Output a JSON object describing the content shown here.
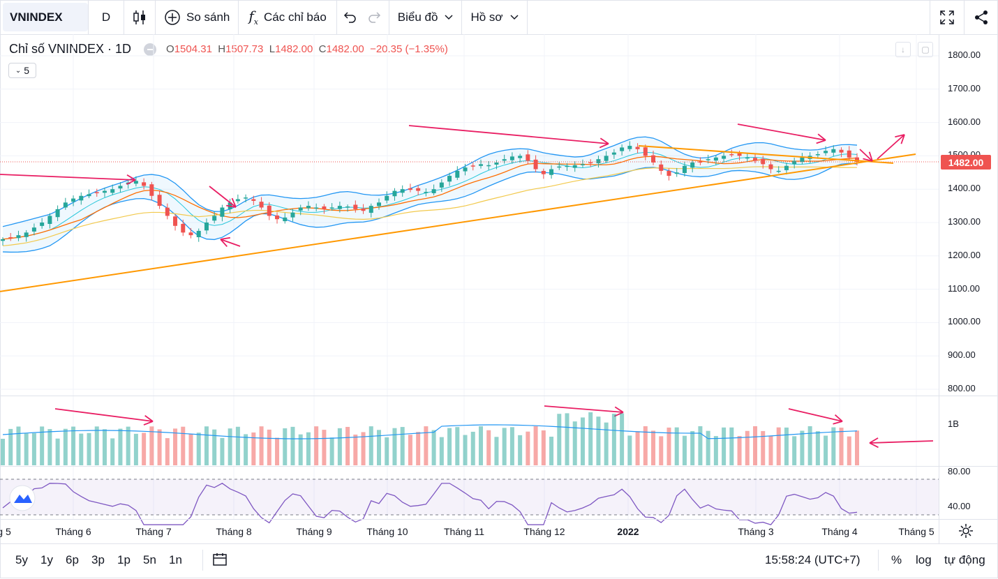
{
  "toolbar": {
    "symbol": "VNINDEX",
    "interval": "D",
    "compare": "So sánh",
    "indicators": "Các chỉ báo",
    "chart_menu": "Biểu đồ",
    "profile_menu": "Hồ sơ",
    "icons": [
      "candles-icon",
      "plus-circle-icon",
      "function-icon",
      "undo-icon",
      "redo-icon",
      "chevron-down-icon",
      "fullscreen-icon",
      "share-icon"
    ]
  },
  "legend": {
    "title": "Chỉ số VNINDEX · 1D",
    "o_label": "O",
    "o": "1504.31",
    "h_label": "H",
    "h": "1507.73",
    "l_label": "L",
    "l": "1482.00",
    "c_label": "C",
    "c": "1482.00",
    "change": "−20.35 (−1.35%)",
    "collapse_count": "5"
  },
  "chart_data": {
    "type": "candlestick",
    "price_axis": [
      "1800.00",
      "1700.00",
      "1600.00",
      "1500.00",
      "1400.00",
      "1300.00",
      "1200.00",
      "1100.00",
      "1000.00",
      "900.00",
      "800.00"
    ],
    "last_price": "1482.00",
    "volume_axis": [
      "1B"
    ],
    "rsi_axis": [
      "80.00",
      "40.00"
    ],
    "time_axis": [
      {
        "label": "g 5"
      },
      {
        "label": "Tháng 6"
      },
      {
        "label": "Tháng 7"
      },
      {
        "label": "Tháng 8"
      },
      {
        "label": "Tháng 9"
      },
      {
        "label": "Tháng 10"
      },
      {
        "label": "Tháng 11"
      },
      {
        "label": "Tháng 12"
      },
      {
        "label": "2022",
        "bold": true
      },
      {
        "label": "Tháng 3"
      },
      {
        "label": "Tháng 4"
      },
      {
        "label": "Tháng 5"
      }
    ],
    "close_path": [
      1250,
      1255,
      1262,
      1270,
      1285,
      1300,
      1320,
      1340,
      1360,
      1372,
      1380,
      1385,
      1390,
      1395,
      1400,
      1410,
      1420,
      1425,
      1410,
      1380,
      1350,
      1320,
      1290,
      1270,
      1262,
      1275,
      1300,
      1320,
      1345,
      1360,
      1370,
      1375,
      1365,
      1345,
      1320,
      1310,
      1315,
      1330,
      1345,
      1350,
      1345,
      1340,
      1345,
      1350,
      1348,
      1340,
      1335,
      1350,
      1360,
      1380,
      1395,
      1400,
      1398,
      1395,
      1392,
      1400,
      1420,
      1440,
      1455,
      1465,
      1470,
      1475,
      1472,
      1480,
      1490,
      1498,
      1500,
      1485,
      1460,
      1445,
      1460,
      1468,
      1470,
      1472,
      1475,
      1480,
      1490,
      1500,
      1510,
      1525,
      1530,
      1520,
      1500,
      1480,
      1455,
      1440,
      1450,
      1470,
      1480,
      1482,
      1490,
      1495,
      1500,
      1505,
      1500,
      1495,
      1485,
      1475,
      1460,
      1455,
      1470,
      1485,
      1495,
      1500,
      1505,
      1515,
      1520,
      1510,
      1495,
      1482
    ],
    "volume_avg_level": "1B",
    "rsi_band": [
      30,
      70
    ]
  },
  "rsi_levels": {
    "upper": "80.00",
    "lower": "40.00"
  },
  "colors": {
    "up": "#26a69a",
    "down": "#ef5350",
    "bb": "#2196f3",
    "ma_fast": "#ff6d00",
    "ma_slow": "#f2c94c",
    "trend": "#ff9800",
    "arrow": "#e91e63",
    "rsi": "#7e57c2"
  },
  "bottom": {
    "ranges": [
      "5y",
      "1y",
      "6p",
      "3p",
      "1p",
      "5n",
      "1n"
    ],
    "time": "15:58:24 (UTC+7)",
    "percent": "%",
    "log": "log",
    "auto": "tự động"
  }
}
